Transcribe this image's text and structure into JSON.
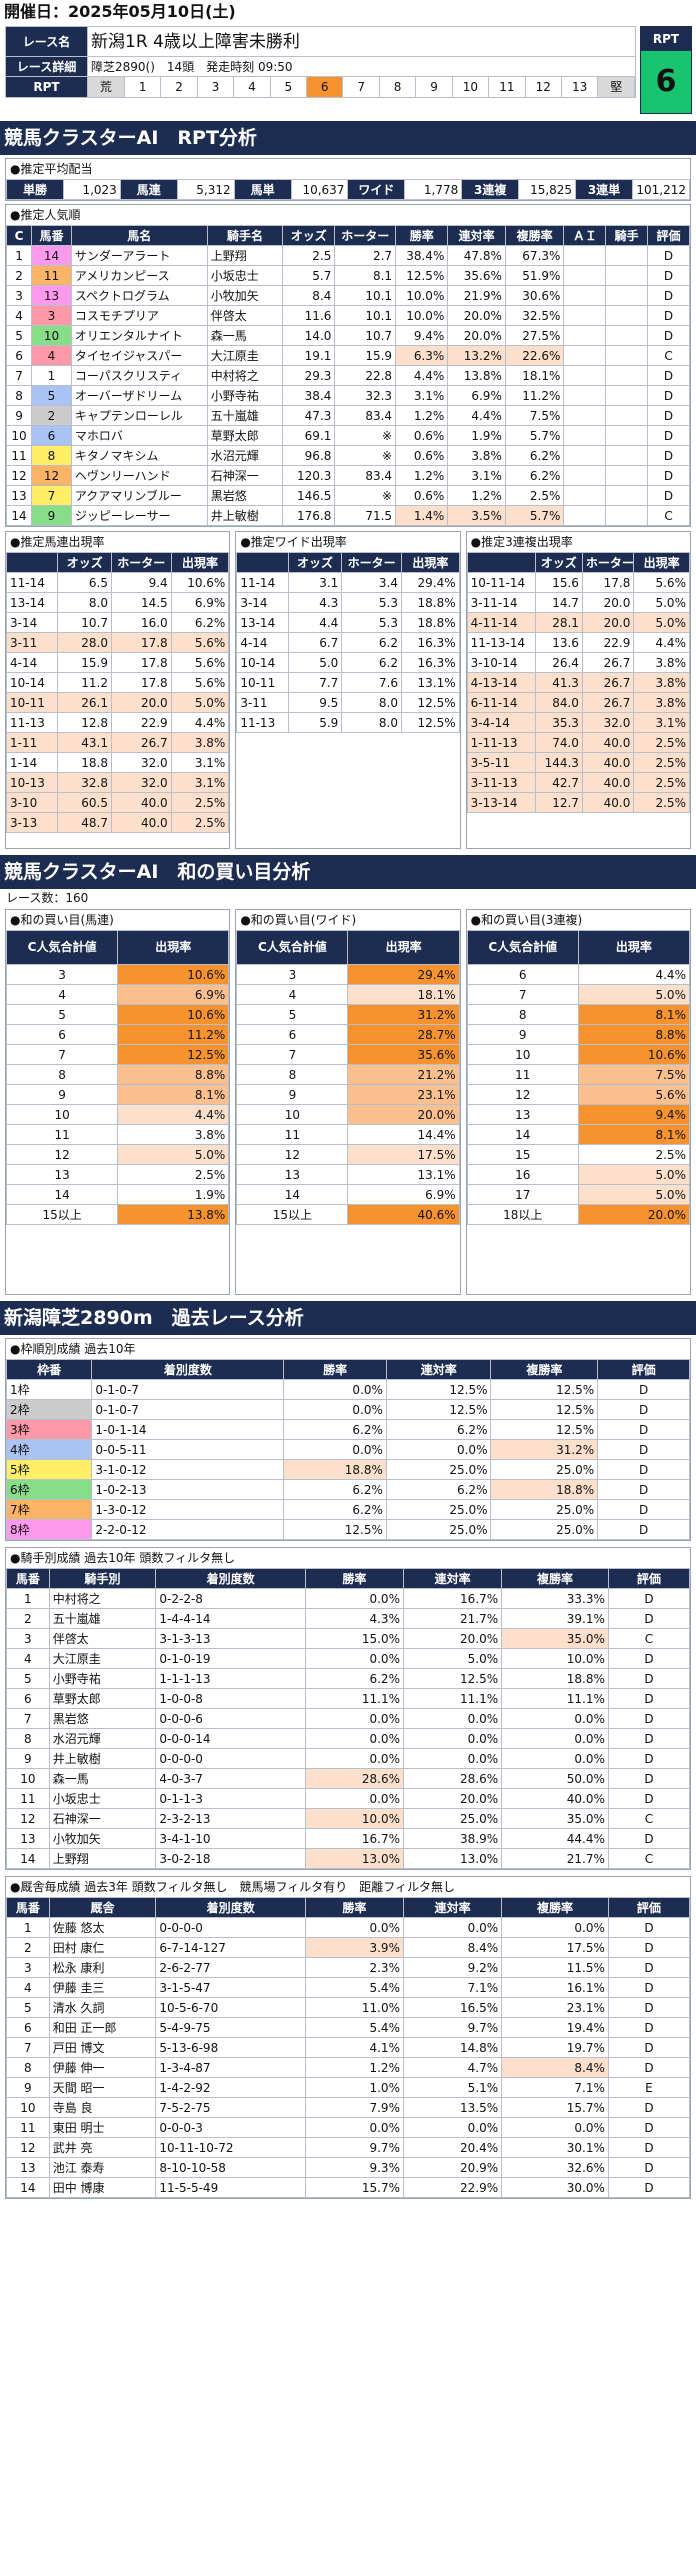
{
  "date_label": "開催日：2025年05月10日(土)",
  "race_row_label": "レース名",
  "race_name": "新潟1R 4歳以上障害未勝利",
  "detail_label": "レース詳細",
  "detail": "障芝2890()　14頭　発走時刻 09:50",
  "rpt_label": "RPT",
  "rpt_value": "6",
  "rpt_scale": [
    "荒",
    "1",
    "2",
    "3",
    "4",
    "5",
    "6",
    "7",
    "8",
    "9",
    "10",
    "11",
    "12",
    "13",
    "堅"
  ],
  "rpt_selected": 6,
  "sec1": "競馬クラスターAI　RPT分析",
  "odds_title": "●推定平均配当",
  "odds": [
    [
      "単勝",
      "1,023"
    ],
    [
      "馬連",
      "5,312"
    ],
    [
      "馬単",
      "10,637"
    ],
    [
      "ワイド",
      "1,778"
    ],
    [
      "3連複",
      "15,825"
    ],
    [
      "3連単",
      "101,212"
    ]
  ],
  "pop_title": "●推定人気順",
  "pop_headers": [
    "C",
    "馬番",
    "馬名",
    "騎手名",
    "オッズ",
    "ホーター",
    "勝率",
    "連対率",
    "複勝率",
    "ＡＩ",
    "騎手",
    "評価"
  ],
  "pop_rows": [
    [
      "1",
      "14",
      "サンダーアラート",
      "上野翔",
      "2.5",
      "2.7",
      "38.4%",
      "47.8%",
      "67.3%",
      "",
      "",
      "D"
    ],
    [
      "2",
      "11",
      "アメリカンピース",
      "小坂忠士",
      "5.7",
      "8.1",
      "12.5%",
      "35.6%",
      "51.9%",
      "",
      "",
      "D"
    ],
    [
      "3",
      "13",
      "スペクトログラム",
      "小牧加矢",
      "8.4",
      "10.1",
      "10.0%",
      "21.9%",
      "30.6%",
      "",
      "",
      "D"
    ],
    [
      "4",
      "3",
      "コスモチプリア",
      "伴啓太",
      "11.6",
      "10.1",
      "10.0%",
      "20.0%",
      "32.5%",
      "",
      "",
      "D"
    ],
    [
      "5",
      "10",
      "オリエンタルナイト",
      "森一馬",
      "14.0",
      "10.7",
      "9.4%",
      "20.0%",
      "27.5%",
      "",
      "",
      "D"
    ],
    [
      "6",
      "4",
      "タイセイジャスパー",
      "大江原圭",
      "19.1",
      "15.9",
      "6.3%",
      "13.2%",
      "22.6%",
      "",
      "",
      "C"
    ],
    [
      "7",
      "1",
      "コーパスクリスティ",
      "中村将之",
      "29.3",
      "22.8",
      "4.4%",
      "13.8%",
      "18.1%",
      "",
      "",
      "D"
    ],
    [
      "8",
      "5",
      "オーバーザドリーム",
      "小野寺祐",
      "38.4",
      "32.3",
      "3.1%",
      "6.9%",
      "11.2%",
      "",
      "",
      "D"
    ],
    [
      "9",
      "2",
      "キャプテンローレル",
      "五十嵐雄",
      "47.3",
      "83.4",
      "1.2%",
      "4.4%",
      "7.5%",
      "",
      "",
      "D"
    ],
    [
      "10",
      "6",
      "マホロバ",
      "草野太郎",
      "69.1",
      "※",
      "0.6%",
      "1.9%",
      "5.7%",
      "",
      "",
      "D"
    ],
    [
      "11",
      "8",
      "キタノマキシム",
      "水沼元輝",
      "96.8",
      "※",
      "0.6%",
      "3.8%",
      "6.2%",
      "",
      "",
      "D"
    ],
    [
      "12",
      "12",
      "ヘヴンリーハンド",
      "石神深一",
      "120.3",
      "83.4",
      "1.2%",
      "3.1%",
      "6.2%",
      "",
      "",
      "D"
    ],
    [
      "13",
      "7",
      "アクアマリンブルー",
      "黒岩悠",
      "146.5",
      "※",
      "0.6%",
      "1.2%",
      "2.5%",
      "",
      "",
      "D"
    ],
    [
      "14",
      "9",
      "ジッピーレーサー",
      "井上敏樹",
      "176.8",
      "71.5",
      "1.4%",
      "3.5%",
      "5.7%",
      "",
      "",
      "C"
    ]
  ],
  "umaren_title": "●推定馬連出現率",
  "wide_title": "●推定ワイド出現率",
  "sanfuku_title": "●推定3連複出現率",
  "combo_headers": [
    "",
    "オッズ",
    "ホーター",
    "出現率"
  ],
  "umaren": [
    [
      "11-14",
      "6.5",
      "9.4",
      "10.6%"
    ],
    [
      "13-14",
      "8.0",
      "14.5",
      "6.9%"
    ],
    [
      "3-14",
      "10.7",
      "16.0",
      "6.2%"
    ],
    [
      "3-11",
      "28.0",
      "17.8",
      "5.6%"
    ],
    [
      "4-14",
      "15.9",
      "17.8",
      "5.6%"
    ],
    [
      "10-14",
      "11.2",
      "17.8",
      "5.6%"
    ],
    [
      "10-11",
      "26.1",
      "20.0",
      "5.0%"
    ],
    [
      "11-13",
      "12.8",
      "22.9",
      "4.4%"
    ],
    [
      "1-11",
      "43.1",
      "26.7",
      "3.8%"
    ],
    [
      "1-14",
      "18.8",
      "32.0",
      "3.1%"
    ],
    [
      "10-13",
      "32.8",
      "32.0",
      "3.1%"
    ],
    [
      "3-10",
      "60.5",
      "40.0",
      "2.5%"
    ],
    [
      "3-13",
      "48.7",
      "40.0",
      "2.5%"
    ]
  ],
  "wide": [
    [
      "11-14",
      "3.1",
      "3.4",
      "29.4%"
    ],
    [
      "3-14",
      "4.3",
      "5.3",
      "18.8%"
    ],
    [
      "13-14",
      "4.4",
      "5.3",
      "18.8%"
    ],
    [
      "4-14",
      "6.7",
      "6.2",
      "16.3%"
    ],
    [
      "10-14",
      "5.0",
      "6.2",
      "16.3%"
    ],
    [
      "10-11",
      "7.7",
      "7.6",
      "13.1%"
    ],
    [
      "3-11",
      "9.5",
      "8.0",
      "12.5%"
    ],
    [
      "11-13",
      "5.9",
      "8.0",
      "12.5%"
    ]
  ],
  "sanfuku": [
    [
      "10-11-14",
      "15.6",
      "17.8",
      "5.6%"
    ],
    [
      "3-11-14",
      "14.7",
      "20.0",
      "5.0%"
    ],
    [
      "4-11-14",
      "28.1",
      "20.0",
      "5.0%"
    ],
    [
      "11-13-14",
      "13.6",
      "22.9",
      "4.4%"
    ],
    [
      "3-10-14",
      "26.4",
      "26.7",
      "3.8%"
    ],
    [
      "4-13-14",
      "41.3",
      "26.7",
      "3.8%"
    ],
    [
      "6-11-14",
      "84.0",
      "26.7",
      "3.8%"
    ],
    [
      "3-4-14",
      "35.3",
      "32.0",
      "3.1%"
    ],
    [
      "1-11-13",
      "74.0",
      "40.0",
      "2.5%"
    ],
    [
      "3-5-11",
      "144.3",
      "40.0",
      "2.5%"
    ],
    [
      "3-11-13",
      "42.7",
      "40.0",
      "2.5%"
    ],
    [
      "3-13-14",
      "12.7",
      "40.0",
      "2.5%"
    ]
  ],
  "sec2": "競馬クラスターAI　和の買い目分析",
  "race_count": "レース数：160",
  "sum_headers": [
    "C人気合計値",
    "出現率"
  ],
  "sum_umaren_title": "●和の買い目(馬連)",
  "sum_wide_title": "●和の買い目(ワイド)",
  "sum_sanfuku_title": "●和の買い目(3連複)",
  "sum_umaren": [
    [
      "3",
      "10.6%"
    ],
    [
      "4",
      "6.9%"
    ],
    [
      "5",
      "10.6%"
    ],
    [
      "6",
      "11.2%"
    ],
    [
      "7",
      "12.5%"
    ],
    [
      "8",
      "8.8%"
    ],
    [
      "9",
      "8.1%"
    ],
    [
      "10",
      "4.4%"
    ],
    [
      "11",
      "3.8%"
    ],
    [
      "12",
      "5.0%"
    ],
    [
      "13",
      "2.5%"
    ],
    [
      "14",
      "1.9%"
    ],
    [
      "15以上",
      "13.8%"
    ]
  ],
  "sum_wide": [
    [
      "3",
      "29.4%"
    ],
    [
      "4",
      "18.1%"
    ],
    [
      "5",
      "31.2%"
    ],
    [
      "6",
      "28.7%"
    ],
    [
      "7",
      "35.6%"
    ],
    [
      "8",
      "21.2%"
    ],
    [
      "9",
      "23.1%"
    ],
    [
      "10",
      "20.0%"
    ],
    [
      "11",
      "14.4%"
    ],
    [
      "12",
      "17.5%"
    ],
    [
      "13",
      "13.1%"
    ],
    [
      "14",
      "6.9%"
    ],
    [
      "15以上",
      "40.6%"
    ]
  ],
  "sum_sanfuku": [
    [
      "6",
      "4.4%"
    ],
    [
      "7",
      "5.0%"
    ],
    [
      "8",
      "8.1%"
    ],
    [
      "9",
      "8.8%"
    ],
    [
      "10",
      "10.6%"
    ],
    [
      "11",
      "7.5%"
    ],
    [
      "12",
      "5.6%"
    ],
    [
      "13",
      "9.4%"
    ],
    [
      "14",
      "8.1%"
    ],
    [
      "15",
      "2.5%"
    ],
    [
      "16",
      "5.0%"
    ],
    [
      "17",
      "5.0%"
    ],
    [
      "18以上",
      "20.0%"
    ]
  ],
  "sec3": "新潟障芝2890m　過去レース分析",
  "frame_title": "●枠順別成績 過去10年",
  "frame_headers": [
    "枠番",
    "着別度数",
    "勝率",
    "連対率",
    "複勝率",
    "評価"
  ],
  "frame": [
    [
      "1枠",
      "0-1-0-7",
      "0.0%",
      "12.5%",
      "12.5%",
      "D"
    ],
    [
      "2枠",
      "0-1-0-7",
      "0.0%",
      "12.5%",
      "12.5%",
      "D"
    ],
    [
      "3枠",
      "1-0-1-14",
      "6.2%",
      "6.2%",
      "12.5%",
      "D"
    ],
    [
      "4枠",
      "0-0-5-11",
      "0.0%",
      "0.0%",
      "31.2%",
      "D"
    ],
    [
      "5枠",
      "3-1-0-12",
      "18.8%",
      "25.0%",
      "25.0%",
      "D"
    ],
    [
      "6枠",
      "1-0-2-13",
      "6.2%",
      "6.2%",
      "18.8%",
      "D"
    ],
    [
      "7枠",
      "1-3-0-12",
      "6.2%",
      "25.0%",
      "25.0%",
      "D"
    ],
    [
      "8枠",
      "2-2-0-12",
      "12.5%",
      "25.0%",
      "25.0%",
      "D"
    ]
  ],
  "jockey_title": "●騎手別成績 過去10年 頭数フィルタ無し",
  "jockey_headers": [
    "馬番",
    "騎手別",
    "着別度数",
    "勝率",
    "連対率",
    "複勝率",
    "評価"
  ],
  "jockey": [
    [
      "1",
      "中村将之",
      "0-2-2-8",
      "0.0%",
      "16.7%",
      "33.3%",
      "D"
    ],
    [
      "2",
      "五十嵐雄",
      "1-4-4-14",
      "4.3%",
      "21.7%",
      "39.1%",
      "D"
    ],
    [
      "3",
      "伴啓太",
      "3-1-3-13",
      "15.0%",
      "20.0%",
      "35.0%",
      "C"
    ],
    [
      "4",
      "大江原圭",
      "0-1-0-19",
      "0.0%",
      "5.0%",
      "10.0%",
      "D"
    ],
    [
      "5",
      "小野寺祐",
      "1-1-1-13",
      "6.2%",
      "12.5%",
      "18.8%",
      "D"
    ],
    [
      "6",
      "草野太郎",
      "1-0-0-8",
      "11.1%",
      "11.1%",
      "11.1%",
      "D"
    ],
    [
      "7",
      "黒岩悠",
      "0-0-0-6",
      "0.0%",
      "0.0%",
      "0.0%",
      "D"
    ],
    [
      "8",
      "水沼元輝",
      "0-0-0-14",
      "0.0%",
      "0.0%",
      "0.0%",
      "D"
    ],
    [
      "9",
      "井上敏樹",
      "0-0-0-0",
      "0.0%",
      "0.0%",
      "0.0%",
      "D"
    ],
    [
      "10",
      "森一馬",
      "4-0-3-7",
      "28.6%",
      "28.6%",
      "50.0%",
      "D"
    ],
    [
      "11",
      "小坂忠士",
      "0-1-1-3",
      "0.0%",
      "20.0%",
      "40.0%",
      "D"
    ],
    [
      "12",
      "石神深一",
      "2-3-2-13",
      "10.0%",
      "25.0%",
      "35.0%",
      "C"
    ],
    [
      "13",
      "小牧加矢",
      "3-4-1-10",
      "16.7%",
      "38.9%",
      "44.4%",
      "D"
    ],
    [
      "14",
      "上野翔",
      "3-0-2-18",
      "13.0%",
      "13.0%",
      "21.7%",
      "C"
    ]
  ],
  "owner_title": "●厩舎毎成績 過去3年 頭数フィルタ無し　競馬場フィルタ有り　距離フィルタ無し",
  "owner_headers": [
    "馬番",
    "厩舎",
    "着別度数",
    "勝率",
    "連対率",
    "複勝率",
    "評価"
  ],
  "owner": [
    [
      "1",
      "佐藤 悠太",
      "0-0-0-0",
      "0.0%",
      "0.0%",
      "0.0%",
      "D"
    ],
    [
      "2",
      "田村 康仁",
      "6-7-14-127",
      "3.9%",
      "8.4%",
      "17.5%",
      "D"
    ],
    [
      "3",
      "松永 康利",
      "2-6-2-77",
      "2.3%",
      "9.2%",
      "11.5%",
      "D"
    ],
    [
      "4",
      "伊藤 圭三",
      "3-1-5-47",
      "5.4%",
      "7.1%",
      "16.1%",
      "D"
    ],
    [
      "5",
      "清水 久詞",
      "10-5-6-70",
      "11.0%",
      "16.5%",
      "23.1%",
      "D"
    ],
    [
      "6",
      "和田 正一郎",
      "5-4-9-75",
      "5.4%",
      "9.7%",
      "19.4%",
      "D"
    ],
    [
      "7",
      "戸田 博文",
      "5-13-6-98",
      "4.1%",
      "14.8%",
      "19.7%",
      "D"
    ],
    [
      "8",
      "伊藤 伸一",
      "1-3-4-87",
      "1.2%",
      "4.7%",
      "8.4%",
      "D"
    ],
    [
      "9",
      "天間 昭一",
      "1-4-2-92",
      "1.0%",
      "5.1%",
      "7.1%",
      "E"
    ],
    [
      "10",
      "寺島 良",
      "7-5-2-75",
      "7.9%",
      "13.5%",
      "15.7%",
      "D"
    ],
    [
      "11",
      "東田 明士",
      "0-0-0-3",
      "0.0%",
      "0.0%",
      "0.0%",
      "D"
    ],
    [
      "12",
      "武井 亮",
      "10-11-10-72",
      "9.7%",
      "20.4%",
      "30.1%",
      "D"
    ],
    [
      "13",
      "池江 泰寿",
      "8-10-10-58",
      "9.3%",
      "20.9%",
      "32.6%",
      "D"
    ],
    [
      "14",
      "田中 博康",
      "11-5-5-49",
      "15.7%",
      "22.9%",
      "30.0%",
      "D"
    ]
  ],
  "colors": {
    "navy": "#1d2d52",
    "rpt_green": "#19c46f",
    "highlight": "#f7932e"
  }
}
